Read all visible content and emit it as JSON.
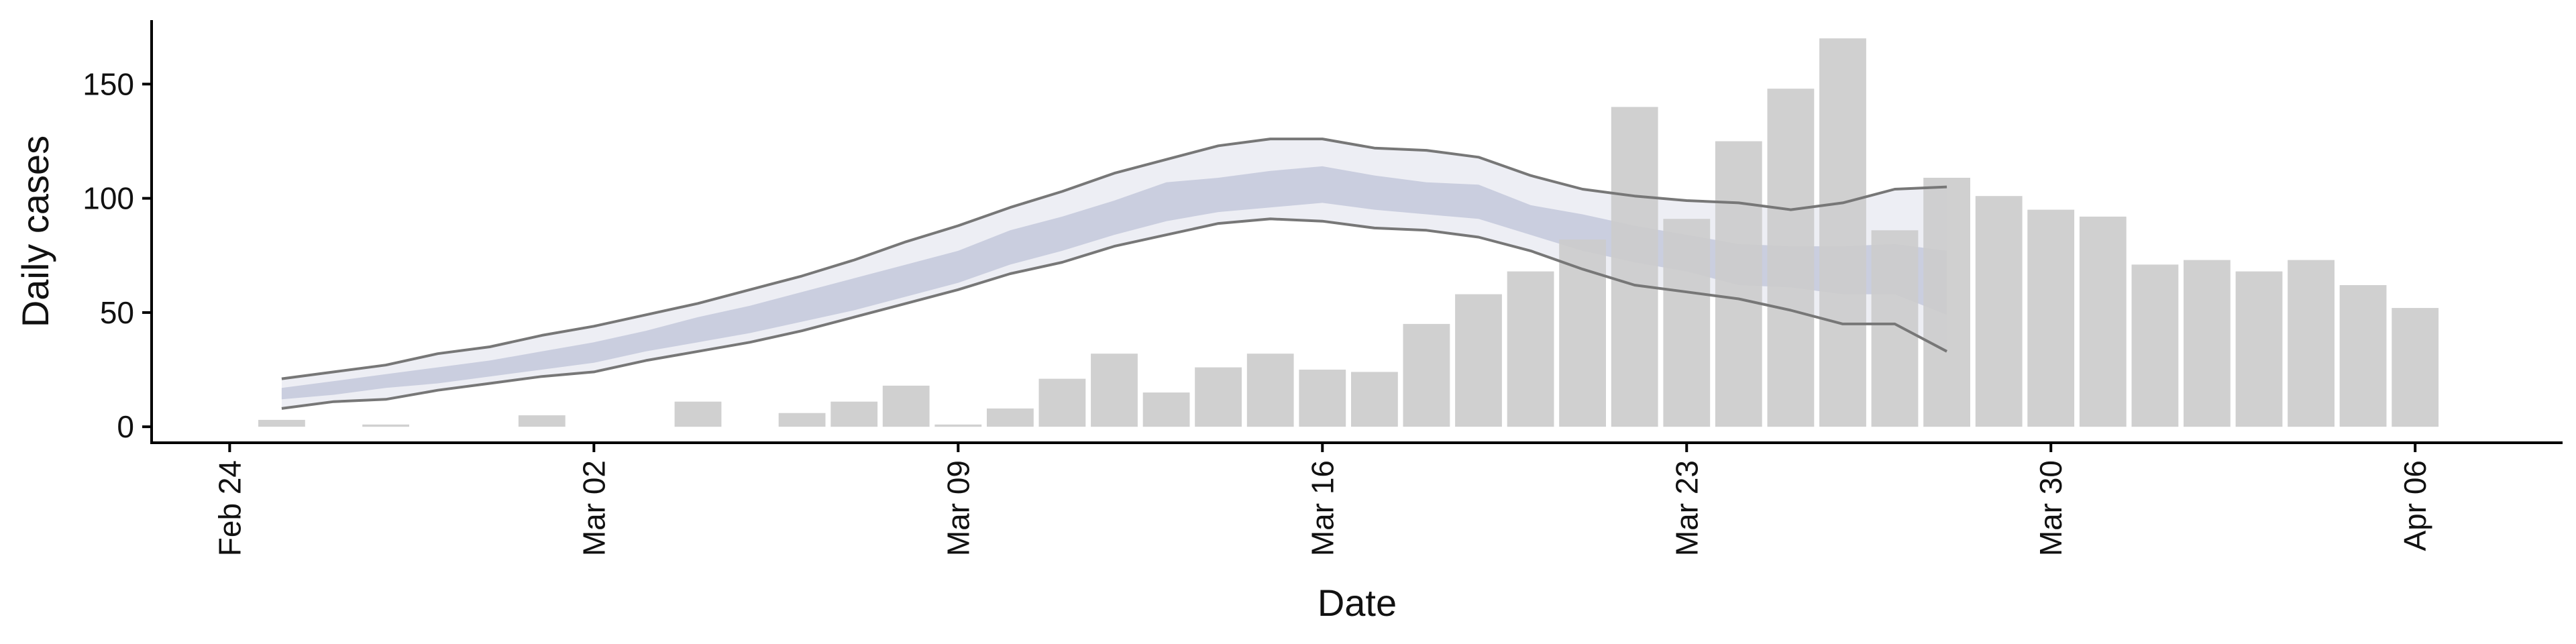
{
  "chart_data": {
    "type": "bar",
    "title": "",
    "xlabel": "Date",
    "ylabel": "Daily cases",
    "ylim": [
      -7,
      178
    ],
    "yticks": [
      0,
      50,
      100,
      150
    ],
    "xticks": [
      {
        "label": "Feb 24",
        "x": "2020-02-24"
      },
      {
        "label": "Mar 02",
        "x": "2020-03-02"
      },
      {
        "label": "Mar 09",
        "x": "2020-03-09"
      },
      {
        "label": "Mar 16",
        "x": "2020-03-16"
      },
      {
        "label": "Mar 23",
        "x": "2020-03-23"
      },
      {
        "label": "Mar 30",
        "x": "2020-03-30"
      },
      {
        "label": "Apr 06",
        "x": "2020-04-06"
      }
    ],
    "xlim": [
      "2020-02-22 12:00",
      "2020-04-08 20:00"
    ],
    "grid": false,
    "legend": "none",
    "bars": {
      "x": [
        "2020-02-25",
        "2020-02-26",
        "2020-02-27",
        "2020-02-28",
        "2020-02-29",
        "2020-03-01",
        "2020-03-02",
        "2020-03-03",
        "2020-03-04",
        "2020-03-05",
        "2020-03-06",
        "2020-03-07",
        "2020-03-08",
        "2020-03-09",
        "2020-03-10",
        "2020-03-11",
        "2020-03-12",
        "2020-03-13",
        "2020-03-14",
        "2020-03-15",
        "2020-03-16",
        "2020-03-17",
        "2020-03-18",
        "2020-03-19",
        "2020-03-20",
        "2020-03-21",
        "2020-03-22",
        "2020-03-23",
        "2020-03-24",
        "2020-03-25",
        "2020-03-26",
        "2020-03-27",
        "2020-03-28",
        "2020-03-29",
        "2020-03-30",
        "2020-03-31",
        "2020-04-01",
        "2020-04-02",
        "2020-04-03",
        "2020-04-04",
        "2020-04-05",
        "2020-04-06"
      ],
      "values": [
        3,
        0,
        1,
        0,
        0,
        5,
        0,
        0,
        11,
        0,
        6,
        11,
        18,
        1,
        8,
        21,
        32,
        15,
        26,
        32,
        25,
        24,
        45,
        58,
        68,
        82,
        140,
        91,
        125,
        148,
        170,
        86,
        109,
        101,
        95,
        92,
        71,
        73,
        68,
        73,
        62,
        52
      ],
      "color": "#cccccc"
    },
    "forecast_ci90": {
      "x": [
        "2020-02-25",
        "2020-02-26",
        "2020-02-27",
        "2020-02-28",
        "2020-02-29",
        "2020-03-01",
        "2020-03-02",
        "2020-03-03",
        "2020-03-04",
        "2020-03-05",
        "2020-03-06",
        "2020-03-07",
        "2020-03-08",
        "2020-03-09",
        "2020-03-10",
        "2020-03-11",
        "2020-03-12",
        "2020-03-13",
        "2020-03-14",
        "2020-03-15",
        "2020-03-16",
        "2020-03-17",
        "2020-03-18",
        "2020-03-19",
        "2020-03-20",
        "2020-03-21",
        "2020-03-22",
        "2020-03-23",
        "2020-03-24",
        "2020-03-25",
        "2020-03-26",
        "2020-03-27",
        "2020-03-28"
      ],
      "upper": [
        21,
        24,
        27,
        32,
        35,
        40,
        44,
        49,
        54,
        60,
        66,
        73,
        81,
        88,
        96,
        103,
        111,
        117,
        123,
        126,
        126,
        122,
        121,
        118,
        110,
        104,
        101,
        99,
        98,
        95,
        98,
        104,
        105
      ],
      "lower": [
        8,
        11,
        12,
        16,
        19,
        22,
        24,
        29,
        33,
        37,
        42,
        48,
        54,
        60,
        67,
        72,
        79,
        84,
        89,
        91,
        90,
        87,
        86,
        83,
        77,
        69,
        62,
        59,
        56,
        51,
        45,
        45,
        33
      ],
      "color": "#eaebf2"
    },
    "forecast_ci50": {
      "x": [
        "2020-02-25",
        "2020-02-26",
        "2020-02-27",
        "2020-02-28",
        "2020-02-29",
        "2020-03-01",
        "2020-03-02",
        "2020-03-03",
        "2020-03-04",
        "2020-03-05",
        "2020-03-06",
        "2020-03-07",
        "2020-03-08",
        "2020-03-09",
        "2020-03-10",
        "2020-03-11",
        "2020-03-12",
        "2020-03-13",
        "2020-03-14",
        "2020-03-15",
        "2020-03-16",
        "2020-03-17",
        "2020-03-18",
        "2020-03-19",
        "2020-03-20",
        "2020-03-21",
        "2020-03-22",
        "2020-03-23",
        "2020-03-24",
        "2020-03-25",
        "2020-03-26",
        "2020-03-27",
        "2020-03-28"
      ],
      "upper": [
        17,
        20,
        23,
        26,
        29,
        33,
        37,
        42,
        48,
        53,
        59,
        65,
        71,
        77,
        86,
        92,
        99,
        107,
        109,
        112,
        114,
        110,
        107,
        106,
        97,
        93,
        88,
        84,
        80,
        79,
        79,
        80,
        77
      ],
      "lower": [
        12,
        14,
        17,
        19,
        22,
        25,
        28,
        33,
        37,
        41,
        46,
        51,
        57,
        63,
        71,
        77,
        84,
        90,
        94,
        96,
        98,
        95,
        93,
        91,
        84,
        77,
        72,
        68,
        62,
        61,
        58,
        58,
        49
      ],
      "color": "#c5cadd"
    },
    "line_color": "#777777"
  }
}
